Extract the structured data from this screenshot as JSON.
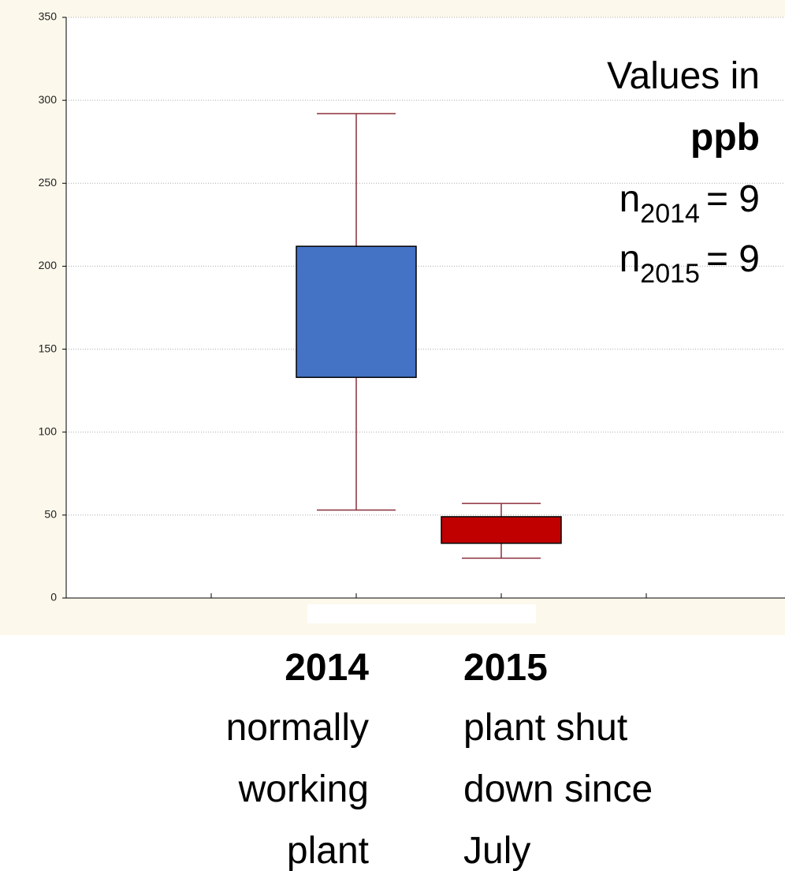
{
  "chart_data": {
    "type": "box",
    "categories": [
      "2014",
      "2015"
    ],
    "descriptions": [
      [
        "normally",
        "working",
        "plant"
      ],
      [
        "plant shut",
        "down since",
        "July"
      ]
    ],
    "colors": [
      "#4472c4",
      "#c00000"
    ],
    "whisker_color": "#8b2e3a",
    "boxes": [
      {
        "low": 53,
        "q1": 133,
        "q3": 212,
        "high": 292
      },
      {
        "low": 24,
        "q1": 33,
        "q3": 49,
        "high": 57
      }
    ],
    "ylim": [
      0,
      350
    ],
    "yticks": [
      0,
      50,
      100,
      150,
      200,
      250,
      300,
      350
    ],
    "grid": true,
    "annotation": {
      "line1": "Values in",
      "unit": "ppb",
      "sample_sizes": [
        {
          "symbol": "n",
          "subscript": "2014",
          "equals": "= 9"
        },
        {
          "symbol": "n",
          "subscript": "2015",
          "equals": "= 9"
        }
      ]
    }
  }
}
